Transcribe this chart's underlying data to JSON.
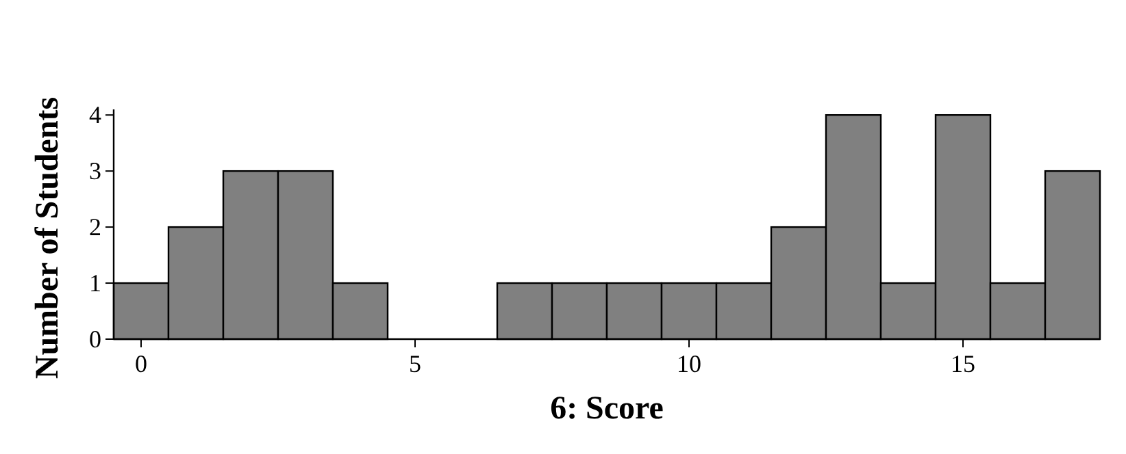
{
  "chart_data": {
    "type": "histogram",
    "xlabel": "6: Score",
    "ylabel": "Number of Students",
    "bins": [
      -0.5,
      0.5,
      1.5,
      2.5,
      3.5,
      4.5,
      5.5,
      6.5,
      7.5,
      8.5,
      9.5,
      10.5,
      11.5,
      12.5,
      13.5,
      14.5,
      15.5,
      16.5,
      17.5
    ],
    "values": [
      1,
      2,
      3,
      3,
      1,
      0,
      0,
      1,
      1,
      1,
      1,
      1,
      2,
      4,
      1,
      4,
      1,
      3
    ],
    "color": "#808080",
    "xlim": [
      -0.5,
      17.5
    ],
    "xticks": [
      0,
      5,
      10,
      15
    ],
    "ylim": [
      0,
      4.1
    ],
    "yticks": [
      0,
      1,
      2,
      3,
      4
    ],
    "grid": false
  }
}
